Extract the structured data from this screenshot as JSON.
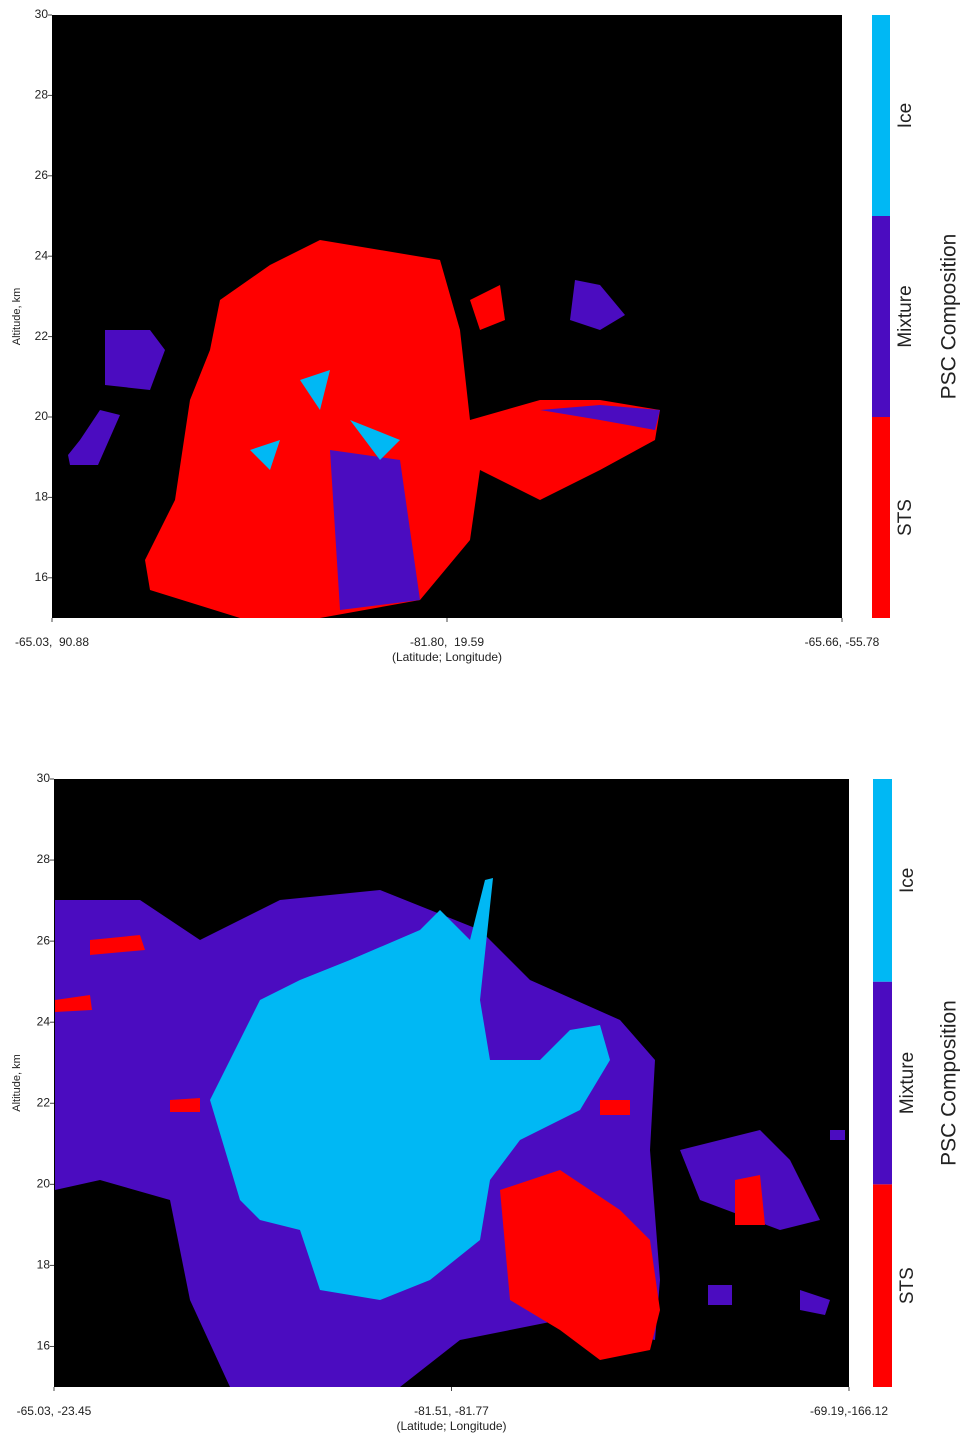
{
  "chart_data": [
    {
      "type": "curtain",
      "y_label": "Altitude, km",
      "x_label": "(Latitude; Longitude)",
      "categories": [
        "-65.03,  90.88",
        "-81.80,  19.59",
        "-65.66, -55.78"
      ],
      "ylim": [
        15,
        30
      ],
      "yticks": [
        16,
        18,
        20,
        22,
        24,
        26,
        28,
        30
      ],
      "colorbar": {
        "label": "PSC Composition",
        "categories": [
          "STS",
          "Mixture",
          "Ice"
        ],
        "colors": [
          "#ff0000",
          "#4b0cc0",
          "#00b8f4"
        ]
      }
    },
    {
      "type": "curtain",
      "y_label": "Altitude, km",
      "x_label": "(Latitude; Longitude)",
      "categories": [
        "-65.03, -23.45",
        "-81.51, -81.77",
        "-69.19,-166.12"
      ],
      "ylim": [
        15,
        30
      ],
      "yticks": [
        16,
        18,
        20,
        22,
        24,
        26,
        28,
        30
      ],
      "colorbar": {
        "label": "PSC Composition",
        "categories": [
          "STS",
          "Mixture",
          "Ice"
        ],
        "colors": [
          "#ff0000",
          "#4b0cc0",
          "#00b8f4"
        ]
      }
    }
  ]
}
